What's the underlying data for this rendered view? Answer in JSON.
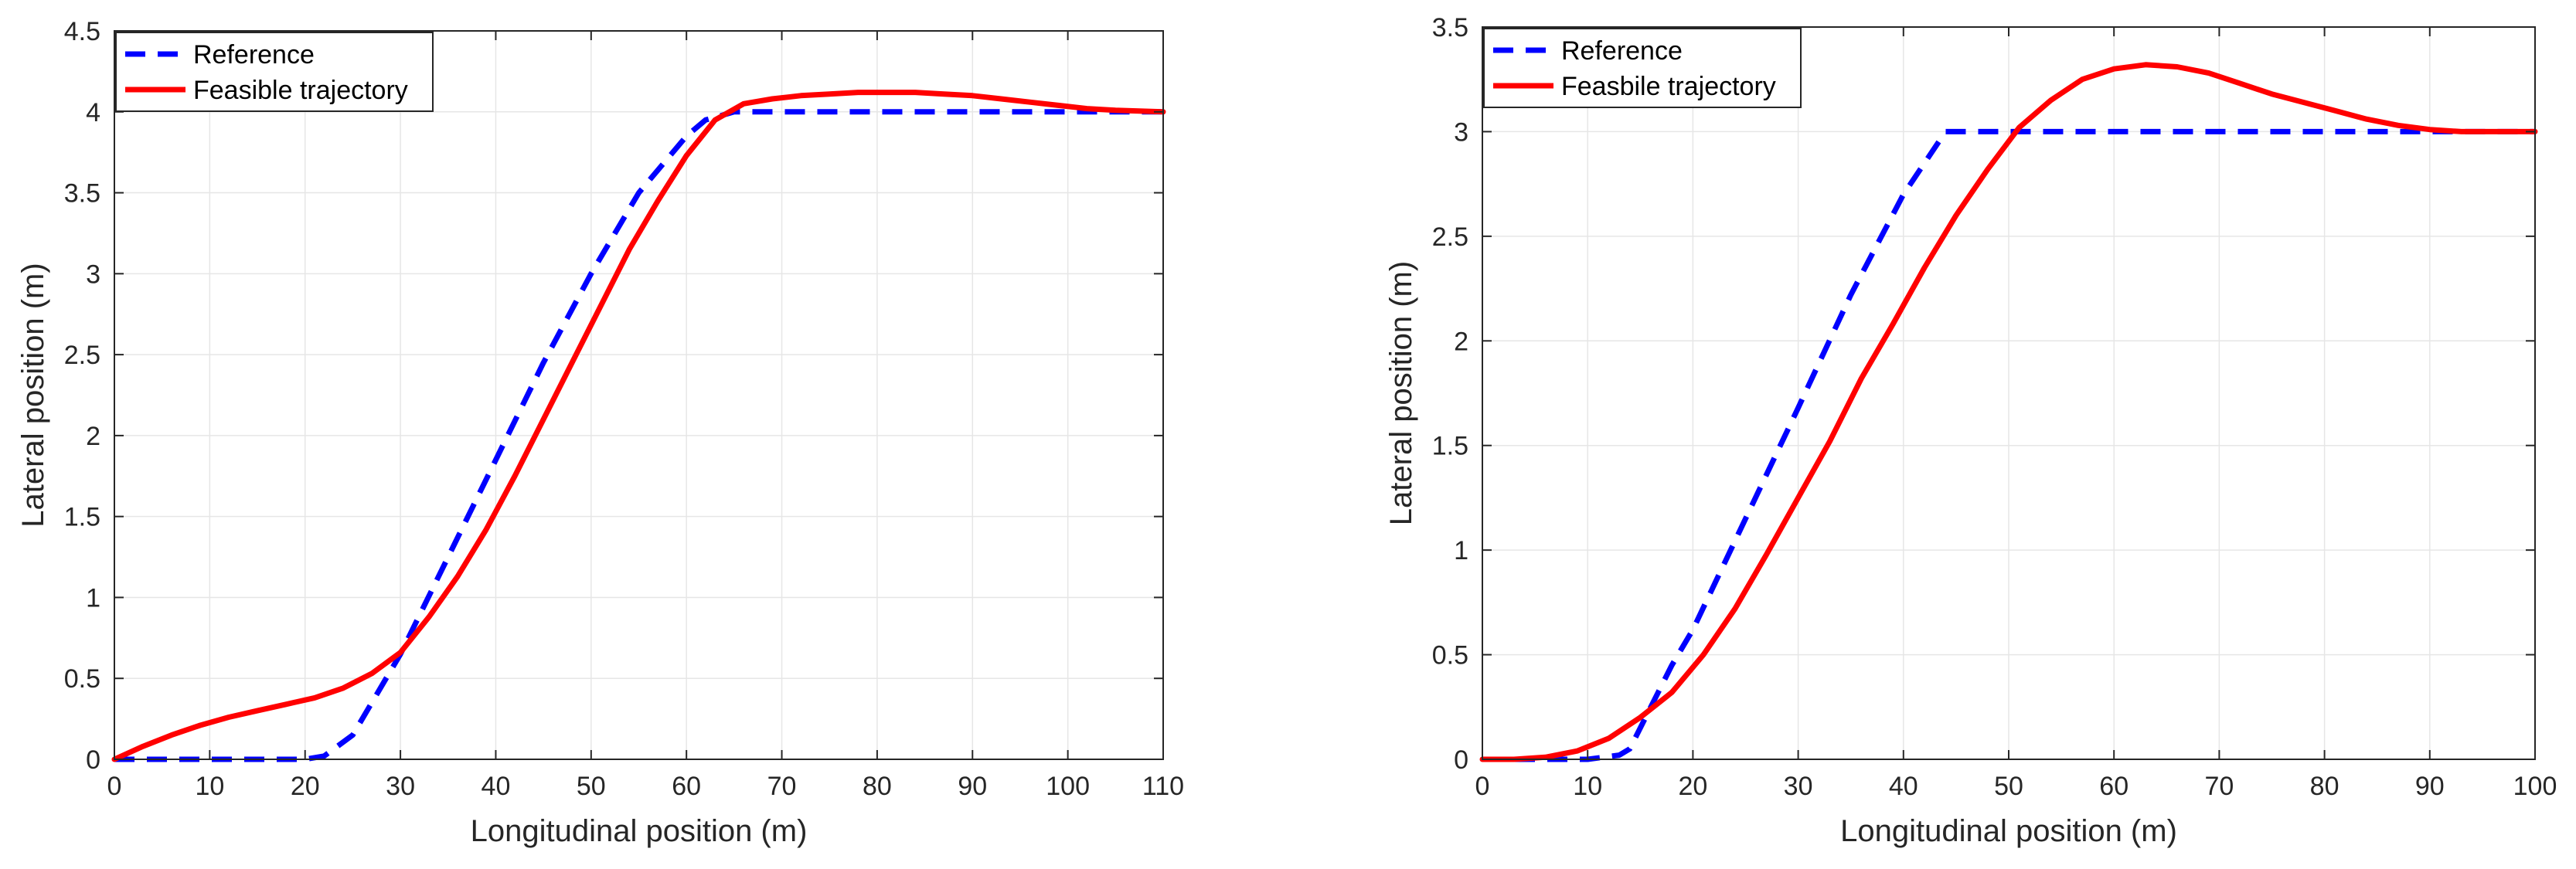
{
  "chart_data": [
    {
      "type": "line",
      "title": "",
      "xlabel": "Longitudinal position (m)",
      "ylabel": "Lateral position (m)",
      "xlim": [
        0,
        110
      ],
      "ylim": [
        0,
        4.5
      ],
      "xticks": [
        0,
        10,
        20,
        30,
        40,
        50,
        60,
        70,
        80,
        90,
        100,
        110
      ],
      "yticks": [
        0,
        0.5,
        1,
        1.5,
        2,
        2.5,
        3,
        3.5,
        4,
        4.5
      ],
      "grid": true,
      "legend_location": "top-left",
      "series": [
        {
          "name": "Reference",
          "color": "#0000FF",
          "style": "dashed",
          "x": [
            0,
            5,
            10,
            15,
            20,
            22,
            25,
            30,
            35,
            40,
            45,
            50,
            55,
            60,
            62,
            65,
            70,
            80,
            90,
            100,
            110
          ],
          "y": [
            0,
            0,
            0,
            0,
            0,
            0.02,
            0.15,
            0.65,
            1.25,
            1.85,
            2.45,
            3.0,
            3.5,
            3.85,
            3.95,
            4.0,
            4.0,
            4.0,
            4.0,
            4.0,
            4.0
          ]
        },
        {
          "name": "Feasible trajectory",
          "color": "#FF0000",
          "style": "solid",
          "x": [
            0,
            3,
            6,
            9,
            12,
            15,
            18,
            21,
            24,
            27,
            30,
            33,
            36,
            39,
            42,
            45,
            48,
            51,
            54,
            57,
            60,
            63,
            66,
            69,
            72,
            75,
            78,
            81,
            84,
            87,
            90,
            93,
            96,
            99,
            102,
            105,
            110
          ],
          "y": [
            0,
            0.08,
            0.15,
            0.21,
            0.26,
            0.3,
            0.34,
            0.38,
            0.44,
            0.53,
            0.66,
            0.88,
            1.13,
            1.42,
            1.75,
            2.1,
            2.45,
            2.8,
            3.15,
            3.45,
            3.73,
            3.95,
            4.05,
            4.08,
            4.1,
            4.11,
            4.12,
            4.12,
            4.12,
            4.11,
            4.1,
            4.08,
            4.06,
            4.04,
            4.02,
            4.01,
            4.0
          ]
        }
      ]
    },
    {
      "type": "line",
      "title": "",
      "xlabel": "Longitudinal position (m)",
      "ylabel": "Lateral position (m)",
      "xlim": [
        0,
        100
      ],
      "ylim": [
        0,
        3.5
      ],
      "xticks": [
        0,
        10,
        20,
        30,
        40,
        50,
        60,
        70,
        80,
        90,
        100
      ],
      "yticks": [
        0,
        0.5,
        1,
        1.5,
        2,
        2.5,
        3,
        3.5
      ],
      "grid": true,
      "legend_location": "top-left",
      "series": [
        {
          "name": "Reference",
          "color": "#0000FF",
          "style": "dashed",
          "x": [
            0,
            5,
            10,
            13,
            14,
            16,
            18,
            20,
            25,
            30,
            35,
            40,
            44,
            45,
            50,
            60,
            70,
            80,
            90,
            100
          ],
          "y": [
            0,
            0,
            0,
            0.02,
            0.05,
            0.25,
            0.45,
            0.62,
            1.15,
            1.68,
            2.22,
            2.7,
            3.0,
            3.0,
            3.0,
            3.0,
            3.0,
            3.0,
            3.0,
            3.0
          ]
        },
        {
          "name": "Feasbile trajectory",
          "color": "#FF0000",
          "style": "solid",
          "x": [
            0,
            3,
            6,
            9,
            12,
            15,
            18,
            21,
            24,
            27,
            30,
            33,
            36,
            39,
            42,
            45,
            48,
            51,
            54,
            57,
            60,
            63,
            66,
            69,
            72,
            75,
            78,
            81,
            84,
            87,
            90,
            93,
            96,
            100
          ],
          "y": [
            0,
            0,
            0.01,
            0.04,
            0.1,
            0.2,
            0.32,
            0.5,
            0.72,
            0.98,
            1.25,
            1.52,
            1.82,
            2.08,
            2.35,
            2.6,
            2.82,
            3.02,
            3.15,
            3.25,
            3.3,
            3.32,
            3.31,
            3.28,
            3.23,
            3.18,
            3.14,
            3.1,
            3.06,
            3.03,
            3.01,
            3.0,
            3.0,
            3.0
          ]
        }
      ]
    }
  ]
}
